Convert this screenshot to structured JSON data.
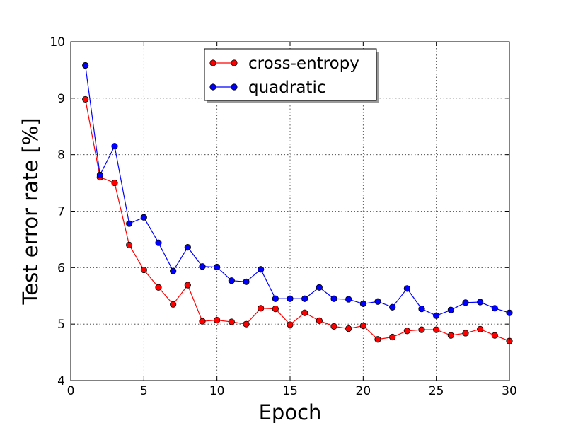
{
  "chart_data": {
    "type": "line",
    "title": "",
    "xlabel": "Epoch",
    "ylabel": "Test error rate [%]",
    "xlim": [
      0,
      30
    ],
    "ylim": [
      4,
      10
    ],
    "xticks": [
      "0",
      "5",
      "10",
      "15",
      "20",
      "25",
      "30"
    ],
    "yticks": [
      "4",
      "5",
      "6",
      "7",
      "8",
      "9",
      "10"
    ],
    "grid": true,
    "legend": "top-center",
    "x": [
      1,
      2,
      3,
      4,
      5,
      6,
      7,
      8,
      9,
      10,
      11,
      12,
      13,
      14,
      15,
      16,
      17,
      18,
      19,
      20,
      21,
      22,
      23,
      24,
      25,
      26,
      27,
      28,
      29,
      30
    ],
    "series": [
      {
        "name": "cross-entropy",
        "color": "#ff0000",
        "values": [
          8.98,
          7.6,
          7.5,
          6.4,
          5.96,
          5.65,
          5.35,
          5.69,
          5.05,
          5.07,
          5.04,
          5.0,
          5.28,
          5.27,
          4.99,
          5.2,
          5.06,
          4.96,
          4.92,
          4.97,
          4.73,
          4.77,
          4.88,
          4.9,
          4.9,
          4.8,
          4.84,
          4.91,
          4.8,
          4.7
        ]
      },
      {
        "name": "quadratic",
        "color": "#0000ff",
        "values": [
          9.58,
          7.64,
          8.15,
          6.78,
          6.89,
          6.44,
          5.94,
          6.36,
          6.02,
          6.01,
          5.77,
          5.75,
          5.97,
          5.45,
          5.45,
          5.45,
          5.65,
          5.45,
          5.44,
          5.36,
          5.4,
          5.3,
          5.63,
          5.27,
          5.15,
          5.25,
          5.38,
          5.39,
          5.28,
          5.2
        ]
      }
    ]
  }
}
